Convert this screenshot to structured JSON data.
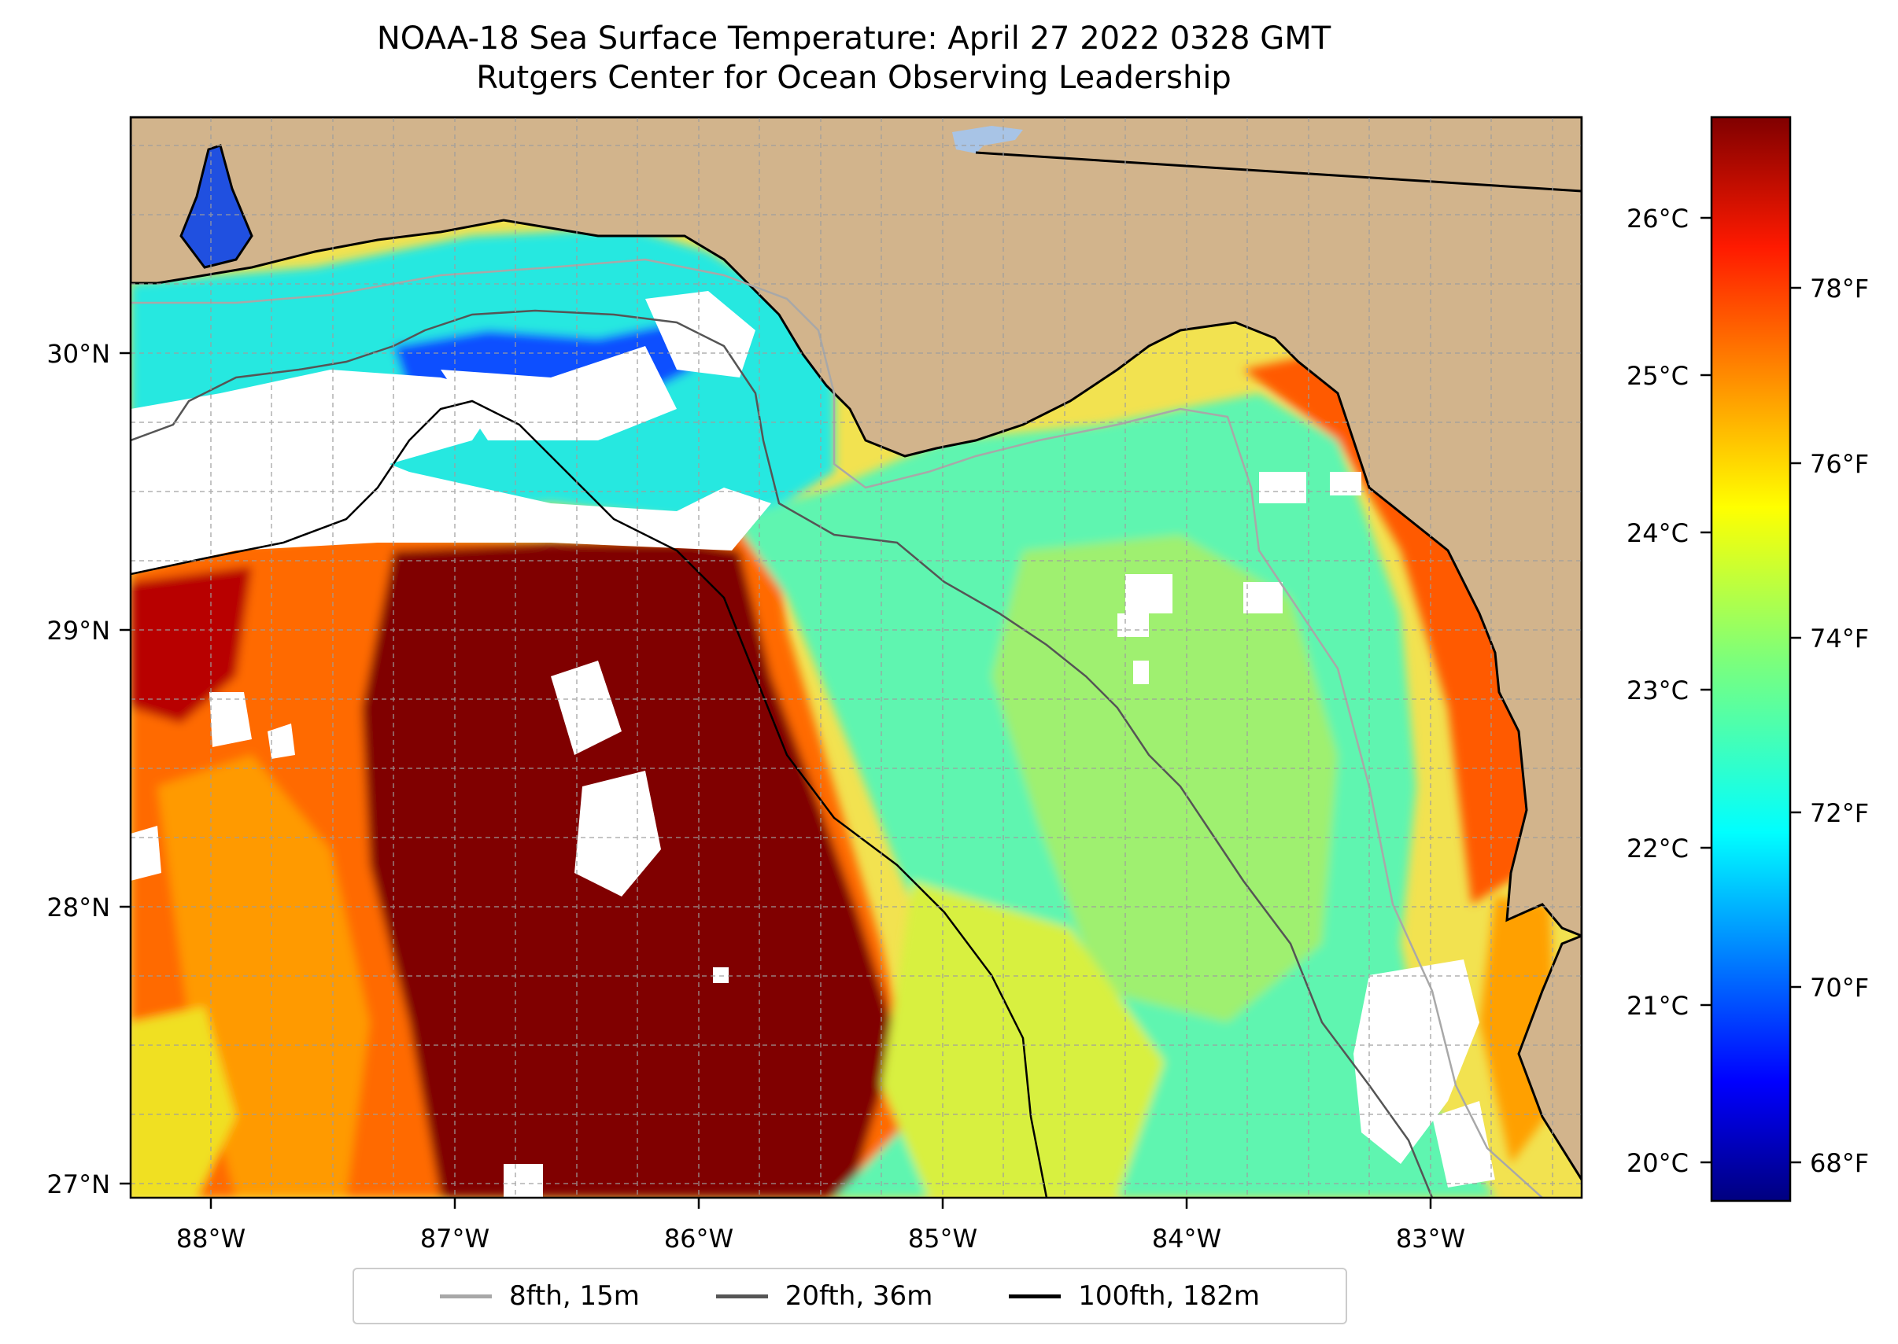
{
  "title": {
    "line1": "NOAA-18 Sea Surface Temperature: April 27 2022 0328 GMT",
    "line2": "Rutgers Center for Ocean Observing Leadership"
  },
  "map": {
    "x_ticks": [
      "88°W",
      "87°W",
      "86°W",
      "85°W",
      "84°W",
      "83°W"
    ],
    "y_ticks": [
      "30°N",
      "29°N",
      "28°N",
      "27°N"
    ],
    "land_color": "#d2b48c",
    "cloud_color": "#ffffff",
    "grid_color": "#9e9e9e"
  },
  "colorbar": {
    "celsius_ticks": [
      "26°C",
      "25°C",
      "24°C",
      "23°C",
      "22°C",
      "21°C",
      "20°C"
    ],
    "fahrenheit_ticks": [
      "78°F",
      "76°F",
      "74°F",
      "72°F",
      "70°F",
      "68°F"
    ],
    "colormap": [
      "#00007f",
      "#0000ff",
      "#0080ff",
      "#00ffff",
      "#80ff80",
      "#ffff00",
      "#ff8000",
      "#ff0000",
      "#800000"
    ]
  },
  "legend": {
    "items": [
      {
        "label": "8fth, 15m",
        "color": "#a8a8a8"
      },
      {
        "label": "20fth, 36m",
        "color": "#555555"
      },
      {
        "label": "100fth, 182m",
        "color": "#000000"
      }
    ]
  }
}
